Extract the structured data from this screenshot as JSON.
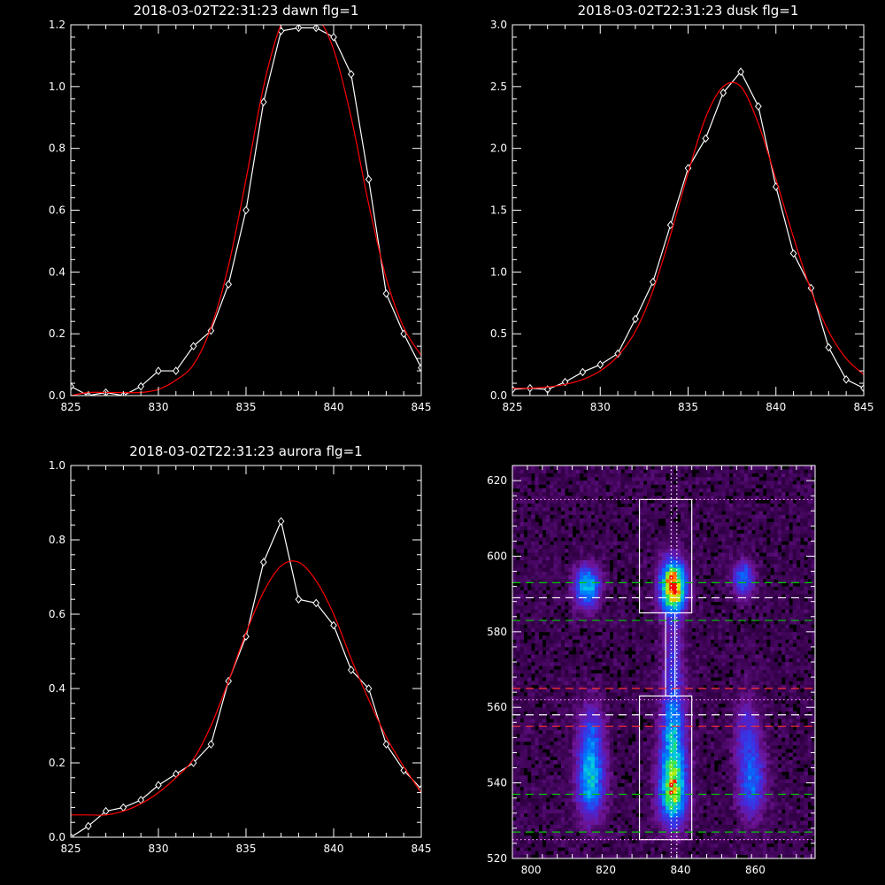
{
  "colors": {
    "background": "#000000",
    "axes": "#ffffff",
    "data_line": "#ffffff",
    "fit_line": "#ff0000"
  },
  "chart_data": [
    {
      "type": "line",
      "title": "2018-03-02T22:31:23 dawn flg=1",
      "xlim": [
        825,
        845
      ],
      "ylim": [
        0,
        1.2
      ],
      "xticks": [
        "825",
        "830",
        "835",
        "840",
        "845"
      ],
      "yticks": [
        "0.0",
        "0.2",
        "0.4",
        "0.6",
        "0.8",
        "1.0",
        "1.2"
      ],
      "series": [
        {
          "style": "white line with diamond markers",
          "x": [
            825,
            826,
            827,
            828,
            829,
            830,
            831,
            832,
            833,
            834,
            835,
            836,
            837,
            838,
            839,
            840,
            841,
            842,
            843,
            844,
            845
          ],
          "y": [
            0.03,
            0.0,
            0.01,
            0.0,
            0.03,
            0.08,
            0.08,
            0.16,
            0.21,
            0.36,
            0.6,
            0.95,
            1.18,
            1.19,
            1.19,
            1.16,
            1.04,
            0.7,
            0.33,
            0.2,
            0.09
          ]
        },
        {
          "style": "red fitted curve",
          "x": [
            825,
            826,
            827,
            828,
            829,
            830,
            831,
            832,
            833,
            834,
            835,
            836,
            837,
            838,
            839,
            840,
            841,
            842,
            843,
            844,
            845
          ],
          "y": [
            0.0,
            0.01,
            0.01,
            0.01,
            0.01,
            0.02,
            0.05,
            0.1,
            0.22,
            0.42,
            0.7,
            1.0,
            1.2,
            1.25,
            1.23,
            1.12,
            0.9,
            0.62,
            0.38,
            0.22,
            0.13
          ]
        }
      ]
    },
    {
      "type": "line",
      "title": "2018-03-02T22:31:23 dusk flg=1",
      "xlim": [
        825,
        845
      ],
      "ylim": [
        0,
        3.0
      ],
      "xticks": [
        "825",
        "830",
        "835",
        "840",
        "845"
      ],
      "yticks": [
        "0.0",
        "0.5",
        "1.0",
        "1.5",
        "2.0",
        "2.5",
        "3.0"
      ],
      "series": [
        {
          "style": "white line with diamond markers",
          "x": [
            825,
            826,
            827,
            828,
            829,
            830,
            831,
            832,
            833,
            834,
            835,
            836,
            837,
            838,
            839,
            840,
            841,
            842,
            843,
            844,
            845
          ],
          "y": [
            0.05,
            0.06,
            0.05,
            0.11,
            0.19,
            0.25,
            0.34,
            0.62,
            0.92,
            1.38,
            1.84,
            2.08,
            2.45,
            2.62,
            2.34,
            1.69,
            1.15,
            0.87,
            0.39,
            0.13,
            0.06
          ]
        },
        {
          "style": "red fitted curve",
          "x": [
            825,
            826,
            827,
            828,
            829,
            830,
            831,
            832,
            833,
            834,
            835,
            836,
            837,
            838,
            839,
            840,
            841,
            842,
            843,
            844,
            845
          ],
          "y": [
            0.06,
            0.06,
            0.07,
            0.09,
            0.13,
            0.2,
            0.32,
            0.52,
            0.85,
            1.3,
            1.8,
            2.25,
            2.5,
            2.5,
            2.2,
            1.75,
            1.28,
            0.85,
            0.52,
            0.3,
            0.17
          ]
        }
      ]
    },
    {
      "type": "line",
      "title": "2018-03-02T22:31:23 aurora flg=1",
      "xlim": [
        825,
        845
      ],
      "ylim": [
        0,
        1.0
      ],
      "xticks": [
        "825",
        "830",
        "835",
        "840",
        "845"
      ],
      "yticks": [
        "0.0",
        "0.2",
        "0.4",
        "0.6",
        "0.8",
        "1.0"
      ],
      "series": [
        {
          "style": "white line with diamond markers",
          "x": [
            825,
            826,
            827,
            828,
            829,
            830,
            831,
            832,
            833,
            834,
            835,
            836,
            837,
            838,
            839,
            840,
            841,
            842,
            843,
            844,
            845
          ],
          "y": [
            0.0,
            0.03,
            0.07,
            0.08,
            0.1,
            0.14,
            0.17,
            0.2,
            0.25,
            0.42,
            0.54,
            0.74,
            0.85,
            0.64,
            0.63,
            0.57,
            0.45,
            0.4,
            0.25,
            0.18,
            0.13
          ]
        },
        {
          "style": "red fitted curve",
          "x": [
            825,
            826,
            827,
            828,
            829,
            830,
            831,
            832,
            833,
            834,
            835,
            836,
            837,
            838,
            839,
            840,
            841,
            842,
            843,
            844,
            845
          ],
          "y": [
            0.06,
            0.06,
            0.06,
            0.07,
            0.09,
            0.12,
            0.16,
            0.21,
            0.3,
            0.42,
            0.55,
            0.66,
            0.73,
            0.74,
            0.69,
            0.6,
            0.48,
            0.37,
            0.27,
            0.19,
            0.12
          ]
        }
      ]
    },
    {
      "type": "heatmap",
      "title": "",
      "xlim": [
        795,
        876
      ],
      "ylim": [
        520,
        624
      ],
      "xticks": [
        "800",
        "820",
        "840",
        "860"
      ],
      "yticks": [
        "520",
        "540",
        "560",
        "580",
        "600",
        "620"
      ],
      "blobs": [
        {
          "x": 838,
          "y": 592,
          "sx": 2.2,
          "sy": 4.5,
          "amp": 1.0
        },
        {
          "x": 838,
          "y": 538,
          "sx": 2.4,
          "sy": 6.0,
          "amp": 0.72
        },
        {
          "x": 838,
          "y": 552,
          "sx": 2.2,
          "sy": 7.0,
          "amp": 0.45
        },
        {
          "x": 838,
          "y": 570,
          "sx": 1.8,
          "sy": 10.0,
          "amp": 0.22
        },
        {
          "x": 815,
          "y": 592,
          "sx": 2.2,
          "sy": 3.5,
          "amp": 0.55
        },
        {
          "x": 816,
          "y": 540,
          "sx": 2.4,
          "sy": 6.0,
          "amp": 0.48
        },
        {
          "x": 816,
          "y": 552,
          "sx": 2.2,
          "sy": 6.0,
          "amp": 0.3
        },
        {
          "x": 857,
          "y": 594,
          "sx": 1.8,
          "sy": 3.0,
          "amp": 0.4
        },
        {
          "x": 859,
          "y": 540,
          "sx": 2.4,
          "sy": 6.0,
          "amp": 0.34
        },
        {
          "x": 858,
          "y": 553,
          "sx": 2.2,
          "sy": 6.0,
          "amp": 0.22
        }
      ],
      "boxes": [
        {
          "x0": 829,
          "x1": 843,
          "y0": 585,
          "y1": 615
        },
        {
          "x0": 829,
          "x1": 843,
          "y0": 525,
          "y1": 563
        },
        {
          "x0": 836,
          "x1": 838.5,
          "y0": 563,
          "y1": 585
        }
      ],
      "hlines": [
        {
          "y": 615,
          "color": "#ff88ff",
          "style": "dotted"
        },
        {
          "y": 593,
          "color": "#00c800",
          "style": "dashed"
        },
        {
          "y": 589,
          "color": "#ffffff",
          "style": "dashed"
        },
        {
          "y": 583,
          "color": "#00c800",
          "style": "dashed"
        },
        {
          "y": 565,
          "color": "#ff3030",
          "style": "dashed"
        },
        {
          "y": 562,
          "color": "#ff88ff",
          "style": "dotted"
        },
        {
          "y": 558,
          "color": "#ffffff",
          "style": "dashed"
        },
        {
          "y": 555,
          "color": "#ff3030",
          "style": "dashed"
        },
        {
          "y": 537,
          "color": "#00c800",
          "style": "dashed"
        },
        {
          "y": 527,
          "color": "#00c800",
          "style": "dashed"
        },
        {
          "y": 525,
          "color": "#ff88ff",
          "style": "dotted"
        }
      ],
      "vlines": [
        {
          "x": 837.5,
          "color": "#ffffff",
          "style": "dotted"
        },
        {
          "x": 839,
          "color": "#ffffff",
          "style": "dotted"
        }
      ]
    }
  ]
}
